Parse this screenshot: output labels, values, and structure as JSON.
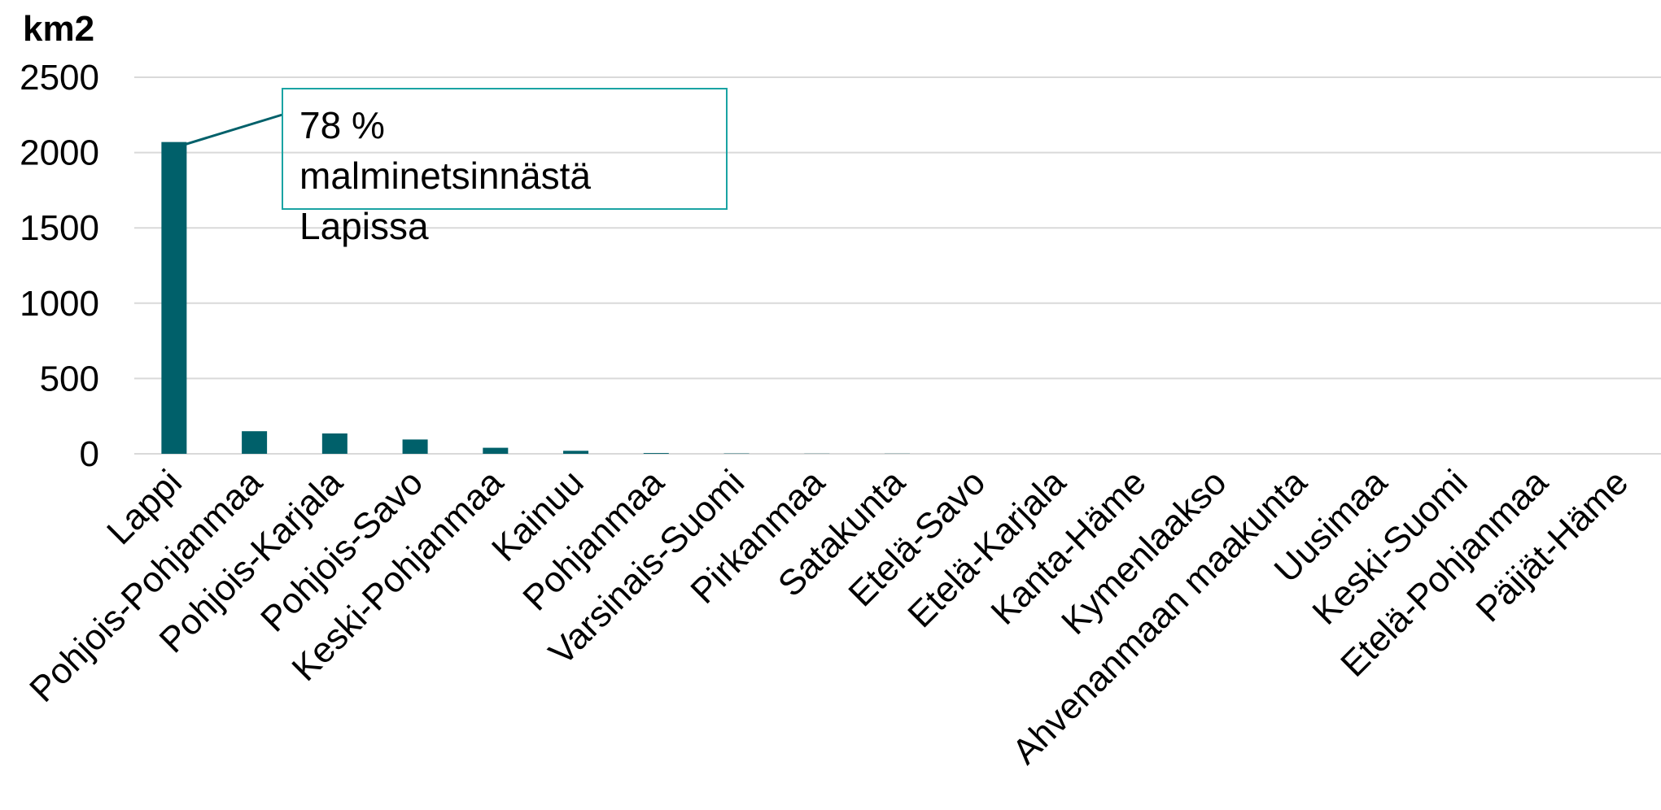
{
  "chart_data": {
    "type": "bar",
    "unit_label": "km2",
    "ylim": [
      0,
      2500
    ],
    "yticks": [
      "0",
      "500",
      "1000",
      "1500",
      "2000",
      "2500"
    ],
    "grid": true,
    "categories": [
      "Lappi",
      "Pohjois-Pohjanmaa",
      "Pohjois-Karjala",
      "Pohjois-Savo",
      "Keski-Pohjanmaa",
      "Kainuu",
      "Pohjanmaa",
      "Varsinais-Suomi",
      "Pirkanmaa",
      "Satakunta",
      "Etelä-Savo",
      "Etelä-Karjala",
      "Kanta-Häme",
      "Kymenlaakso",
      "Ahvenanmaan maakunta",
      "Uusimaa",
      "Keski-Suomi",
      "Etelä-Pohjanmaa",
      "Päijät-Häme"
    ],
    "values": [
      2070,
      150,
      135,
      95,
      40,
      20,
      5,
      2,
      1,
      1,
      0,
      0,
      0,
      0,
      0,
      0,
      0,
      0,
      0
    ],
    "bar_color": "#00606a",
    "annotation": {
      "lines": [
        "78 %",
        "malminetsinnästä",
        "Lapissa"
      ],
      "target_category": "Lappi",
      "border_color": "#1aa3a3",
      "leader_color": "#00606a"
    }
  }
}
